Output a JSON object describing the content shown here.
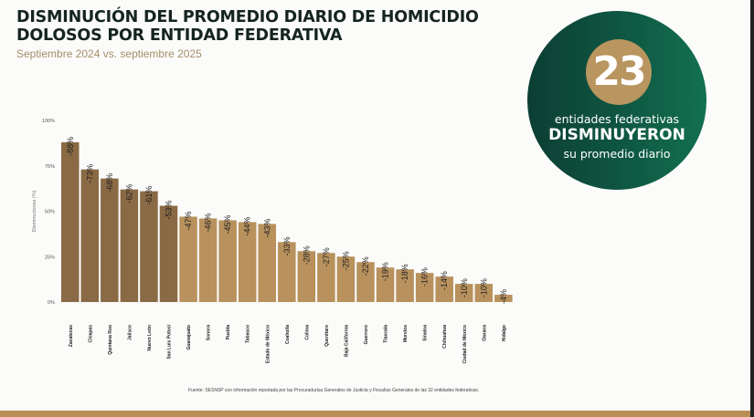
{
  "header": {
    "title": "DISMINUCIÓN DEL PROMEDIO DIARIO DE HOMICIDIO DOLOSOS POR ENTIDAD FEDERATIVA",
    "subtitle": "Septiembre 2024 vs. septiembre 2025"
  },
  "badge": {
    "number": "23",
    "line1": "entidades federativas",
    "line2": "DISMINUYERON",
    "line3": "su promedio diario"
  },
  "source": "Fuente: SESNSP con información reportada por las Procuradurías Generales de Justicia y Fiscalías Generales de las 32 entidades federativas.",
  "colors": {
    "dark_bar": "#8a6a44",
    "light_bar": "#b8915d",
    "green": "#0f5a44",
    "gold": "#b9955f"
  },
  "chart_data": {
    "type": "bar",
    "title": "DISMINUCIÓN DEL PROMEDIO DIARIO DE HOMICIDIO DOLOSOS POR ENTIDAD FEDERATIVA",
    "xlabel": "",
    "ylabel": "Disminuciones (%)",
    "ylim": [
      0,
      100
    ],
    "yticks": [
      "0%",
      "25%",
      "50%",
      "75%",
      "100%"
    ],
    "grid": false,
    "categories": [
      "Zacatecas",
      "Chiapas",
      "Quintana Roo",
      "Jalisco",
      "Nuevo León",
      "San Luis Potosí",
      "Guanajuato",
      "Sonora",
      "Puebla",
      "Tabasco",
      "Estado de México",
      "Coahuila",
      "Colima",
      "Querétaro",
      "Baja California",
      "Guerrero",
      "Tlaxcala",
      "Morelos",
      "Sinaloa",
      "Chihuahua",
      "Ciudad de México",
      "Oaxaca",
      "Hidalgo"
    ],
    "values": [
      88,
      73,
      68,
      62,
      61,
      53,
      47,
      46,
      45,
      44,
      43,
      33,
      28,
      27,
      25,
      22,
      19,
      18,
      16,
      14,
      10,
      10,
      4
    ],
    "labels": [
      "-88%",
      "-73%",
      "-68%",
      "-62%",
      "-61%",
      "-53%",
      "-47%",
      "-46%",
      "-45%",
      "-44%",
      "-43%",
      "-33%",
      "-28%",
      "-27%",
      "-25%",
      "-22%",
      "-19%",
      "-18%",
      "-16%",
      "-14%",
      "-10%",
      "-10%",
      "-4%"
    ],
    "highlighted_count": 6
  }
}
